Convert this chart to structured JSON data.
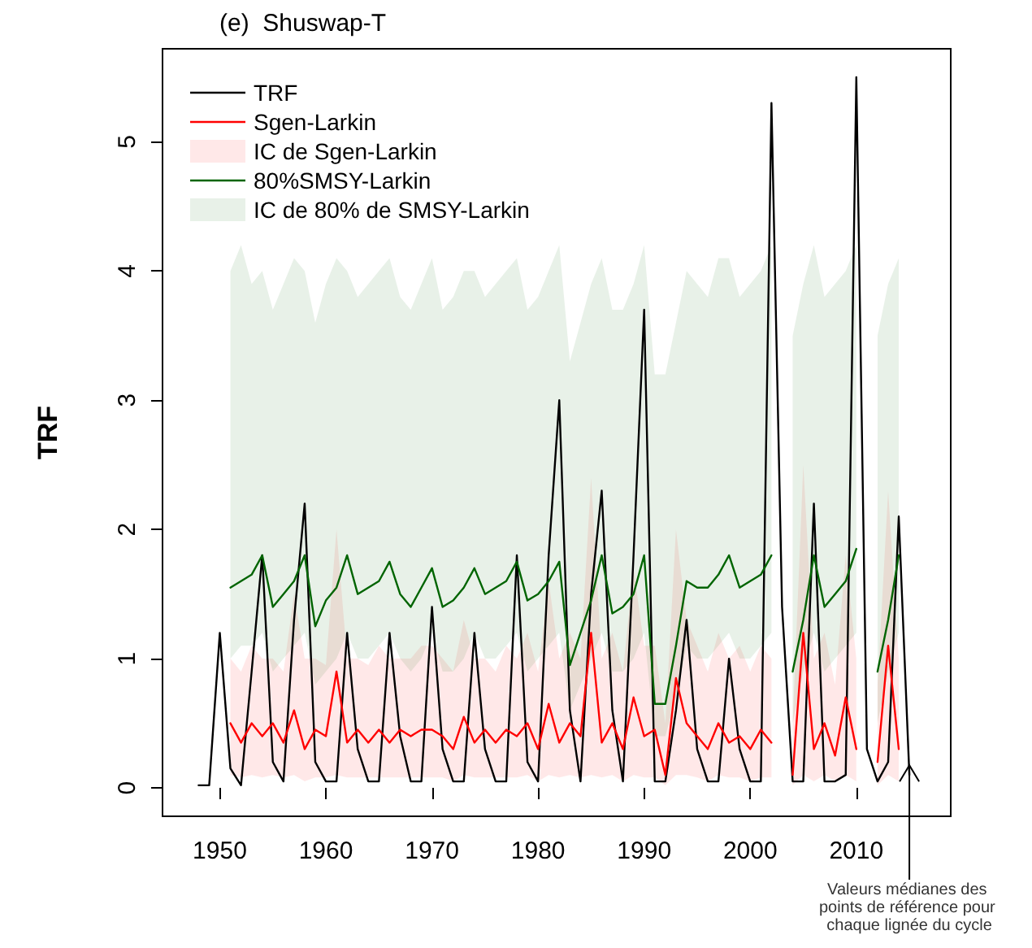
{
  "chart_data": {
    "type": "line",
    "title": "(e)  Shuswap-T",
    "ylabel": "TRF",
    "x": [
      1948,
      1949,
      1950,
      1951,
      1952,
      1953,
      1954,
      1955,
      1956,
      1957,
      1958,
      1959,
      1960,
      1961,
      1962,
      1963,
      1964,
      1965,
      1966,
      1967,
      1968,
      1969,
      1970,
      1971,
      1972,
      1973,
      1974,
      1975,
      1976,
      1977,
      1978,
      1979,
      1980,
      1981,
      1982,
      1983,
      1984,
      1985,
      1986,
      1987,
      1988,
      1989,
      1990,
      1991,
      1992,
      1993,
      1994,
      1995,
      1996,
      1997,
      1998,
      1999,
      2000,
      2001,
      2002,
      2003,
      2004,
      2005,
      2006,
      2007,
      2008,
      2009,
      2010,
      2011,
      2012,
      2013,
      2014,
      2015
    ],
    "series": [
      {
        "name": "TRF",
        "type": "line",
        "color": "#000000",
        "values": [
          0.02,
          0.02,
          1.2,
          0.15,
          0.02,
          0.9,
          1.8,
          0.2,
          0.05,
          1.3,
          2.2,
          0.2,
          0.05,
          0.05,
          1.2,
          0.3,
          0.05,
          0.05,
          1.2,
          0.4,
          0.05,
          0.05,
          1.4,
          0.3,
          0.05,
          0.05,
          1.2,
          0.3,
          0.05,
          0.05,
          1.8,
          0.2,
          0.05,
          1.8,
          3.0,
          0.6,
          0.05,
          1.5,
          2.3,
          0.6,
          0.05,
          1.8,
          3.7,
          0.05,
          0.05,
          0.6,
          1.3,
          0.3,
          0.05,
          0.05,
          1.0,
          0.3,
          0.05,
          0.05,
          5.3,
          1.4,
          0.05,
          0.05,
          2.2,
          0.05,
          0.05,
          0.1,
          5.5,
          0.3,
          0.05,
          0.2,
          2.1,
          0.1
        ]
      },
      {
        "name": "Sgen-Larkin",
        "type": "line",
        "color": "#ff0000",
        "values": [
          null,
          null,
          null,
          0.5,
          0.35,
          0.5,
          0.4,
          0.5,
          0.35,
          0.6,
          0.3,
          0.45,
          0.4,
          0.9,
          0.35,
          0.45,
          0.35,
          0.45,
          0.35,
          0.45,
          0.4,
          0.45,
          0.45,
          0.4,
          0.3,
          0.55,
          0.35,
          0.45,
          0.35,
          0.45,
          0.4,
          0.5,
          0.3,
          0.65,
          0.35,
          0.5,
          0.4,
          1.2,
          0.35,
          0.5,
          0.3,
          0.7,
          0.4,
          0.45,
          0.1,
          0.85,
          0.5,
          0.4,
          0.3,
          0.5,
          0.35,
          0.4,
          0.3,
          0.45,
          0.35,
          null,
          0.1,
          1.2,
          0.3,
          0.5,
          0.25,
          0.7,
          0.3,
          null,
          0.2,
          1.1,
          0.3,
          null
        ],
        "lower": [
          null,
          null,
          null,
          0.1,
          0.08,
          0.1,
          0.08,
          0.1,
          0.08,
          0.1,
          0.05,
          0.08,
          0.08,
          0.1,
          0.08,
          0.08,
          0.08,
          0.08,
          0.08,
          0.08,
          0.08,
          0.08,
          0.08,
          0.08,
          0.05,
          0.1,
          0.08,
          0.08,
          0.08,
          0.08,
          0.08,
          0.1,
          0.05,
          0.1,
          0.08,
          0.1,
          0.08,
          0.1,
          0.08,
          0.1,
          0.05,
          0.1,
          0.08,
          0.08,
          0.02,
          0.1,
          0.1,
          0.08,
          0.05,
          0.1,
          0.08,
          0.08,
          0.05,
          0.08,
          0.08,
          null,
          0.02,
          0.1,
          0.05,
          0.1,
          0.05,
          0.1,
          0.05,
          null,
          0.02,
          0.1,
          0.05,
          null
        ],
        "upper": [
          null,
          null,
          null,
          1.0,
          0.9,
          1.1,
          1.0,
          1.0,
          0.9,
          1.5,
          1.0,
          1.0,
          0.95,
          2.0,
          1.0,
          1.0,
          0.95,
          1.1,
          1.0,
          1.0,
          1.0,
          1.1,
          1.1,
          1.0,
          0.9,
          1.3,
          1.0,
          1.0,
          0.9,
          1.1,
          1.0,
          1.2,
          0.9,
          1.6,
          1.0,
          1.2,
          1.0,
          2.4,
          1.0,
          1.2,
          0.9,
          1.7,
          1.1,
          1.1,
          0.5,
          2.0,
          1.3,
          1.1,
          0.9,
          1.2,
          1.0,
          1.1,
          0.9,
          1.1,
          1.0,
          null,
          0.5,
          2.5,
          1.0,
          1.2,
          0.8,
          1.8,
          1.0,
          null,
          0.8,
          2.3,
          1.0,
          null
        ]
      },
      {
        "name": "80%SMSY-Larkin",
        "type": "line",
        "color": "#006400",
        "values": [
          null,
          null,
          null,
          1.55,
          1.6,
          1.65,
          1.8,
          1.4,
          1.5,
          1.6,
          1.8,
          1.25,
          1.45,
          1.55,
          1.8,
          1.5,
          1.55,
          1.6,
          1.75,
          1.5,
          1.4,
          1.55,
          1.7,
          1.4,
          1.45,
          1.55,
          1.7,
          1.5,
          1.55,
          1.6,
          1.75,
          1.45,
          1.5,
          1.6,
          1.75,
          0.95,
          1.2,
          1.45,
          1.8,
          1.35,
          1.4,
          1.5,
          1.8,
          0.65,
          0.65,
          1.1,
          1.6,
          1.55,
          1.55,
          1.65,
          1.8,
          1.55,
          1.6,
          1.65,
          1.8,
          null,
          0.9,
          1.3,
          1.8,
          1.4,
          1.5,
          1.6,
          1.85,
          null,
          0.9,
          1.3,
          1.8,
          null
        ],
        "lower": [
          null,
          null,
          null,
          1.0,
          1.1,
          1.1,
          1.2,
          0.9,
          1.0,
          1.1,
          1.2,
          0.8,
          0.9,
          1.0,
          1.2,
          1.0,
          1.0,
          1.1,
          1.2,
          1.0,
          0.9,
          1.0,
          1.2,
          0.9,
          0.9,
          1.0,
          1.2,
          1.0,
          1.0,
          1.1,
          1.2,
          0.9,
          1.0,
          1.1,
          1.2,
          0.6,
          0.8,
          1.0,
          1.2,
          0.9,
          0.9,
          1.0,
          1.2,
          0.4,
          0.4,
          0.7,
          1.1,
          1.0,
          1.0,
          1.1,
          1.2,
          1.0,
          1.0,
          1.1,
          1.2,
          null,
          0.5,
          0.9,
          1.2,
          0.9,
          1.0,
          1.1,
          1.2,
          null,
          0.5,
          0.9,
          1.2,
          null
        ],
        "upper": [
          null,
          null,
          null,
          4.0,
          4.2,
          3.9,
          4.0,
          3.7,
          3.9,
          4.1,
          4.0,
          3.6,
          3.9,
          4.1,
          4.0,
          3.8,
          3.9,
          4.0,
          4.1,
          3.8,
          3.7,
          3.9,
          4.1,
          3.7,
          3.8,
          4.0,
          4.0,
          3.8,
          3.9,
          4.0,
          4.1,
          3.7,
          3.8,
          4.0,
          4.2,
          3.3,
          3.6,
          3.9,
          4.1,
          3.7,
          3.7,
          3.9,
          4.2,
          3.2,
          3.2,
          3.6,
          4.0,
          3.9,
          3.8,
          4.1,
          4.1,
          3.8,
          3.9,
          4.0,
          4.2,
          null,
          3.5,
          3.9,
          4.2,
          3.8,
          3.9,
          4.0,
          4.2,
          null,
          3.5,
          3.9,
          4.1,
          null
        ]
      }
    ],
    "xlim": [
      1944.6,
      2018.9
    ],
    "xticks": [
      1950,
      1960,
      1970,
      1980,
      1990,
      2000,
      2010
    ],
    "ylim": [
      -0.22,
      5.72
    ],
    "yticks": [
      0,
      1,
      2,
      3,
      4,
      5
    ],
    "grid": false,
    "legend": "top left",
    "marker": "none",
    "line_style": "solid",
    "annotations": [
      {
        "text": "Valeurs médianes des points de référence pour chaque lignée du cycle",
        "x": 2015,
        "y": 0.2
      },
      "IC de Sgen-Larkin",
      "IC de 80% de SMSY-Larkin"
    ]
  }
}
